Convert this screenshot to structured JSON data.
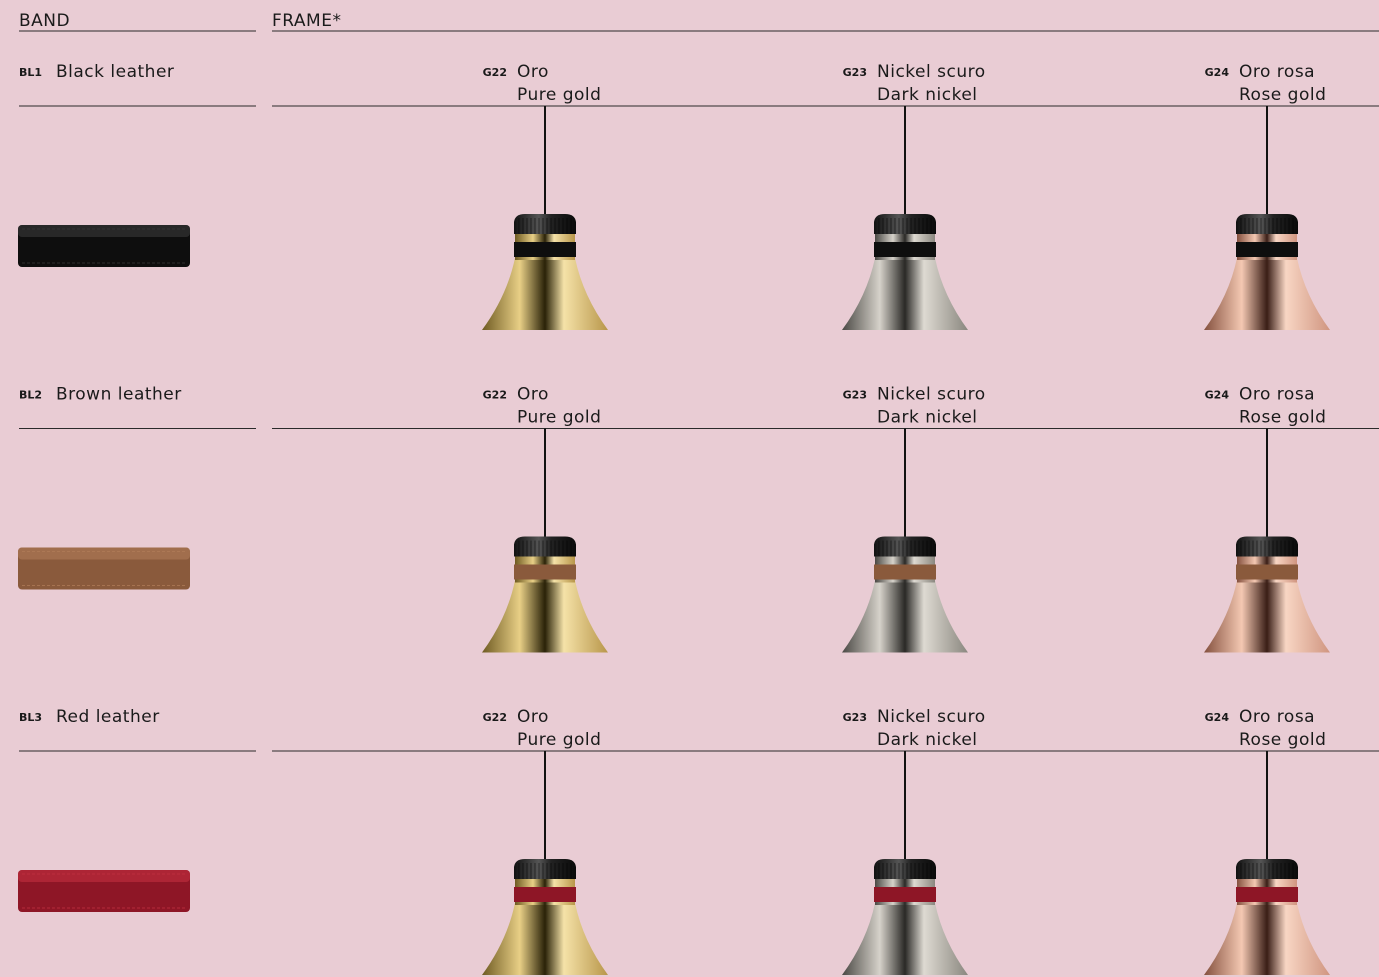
{
  "header": {
    "band": "BAND",
    "frame": "FRAME*"
  },
  "rows": [
    {
      "code": "BL1",
      "name": "Black leather",
      "frames": [
        {
          "code": "G22",
          "name": "Oro",
          "name_en": "Pure gold"
        },
        {
          "code": "G23",
          "name": "Nickel scuro",
          "name_en": "Dark nickel"
        },
        {
          "code": "G24",
          "name": "Oro rosa",
          "name_en": "Rose gold"
        }
      ]
    },
    {
      "code": "BL2",
      "name": "Brown leather",
      "frames": [
        {
          "code": "G22",
          "name": "Oro",
          "name_en": "Pure gold"
        },
        {
          "code": "G23",
          "name": "Nickel scuro",
          "name_en": "Dark nickel"
        },
        {
          "code": "G24",
          "name": "Oro rosa",
          "name_en": "Rose gold"
        }
      ]
    },
    {
      "code": "BL3",
      "name": "Red leather",
      "frames": [
        {
          "code": "G22",
          "name": "Oro",
          "name_en": "Pure gold"
        },
        {
          "code": "G23",
          "name": "Nickel scuro",
          "name_en": "Dark nickel"
        },
        {
          "code": "G24",
          "name": "Oro rosa",
          "name_en": "Rose gold"
        }
      ]
    }
  ]
}
